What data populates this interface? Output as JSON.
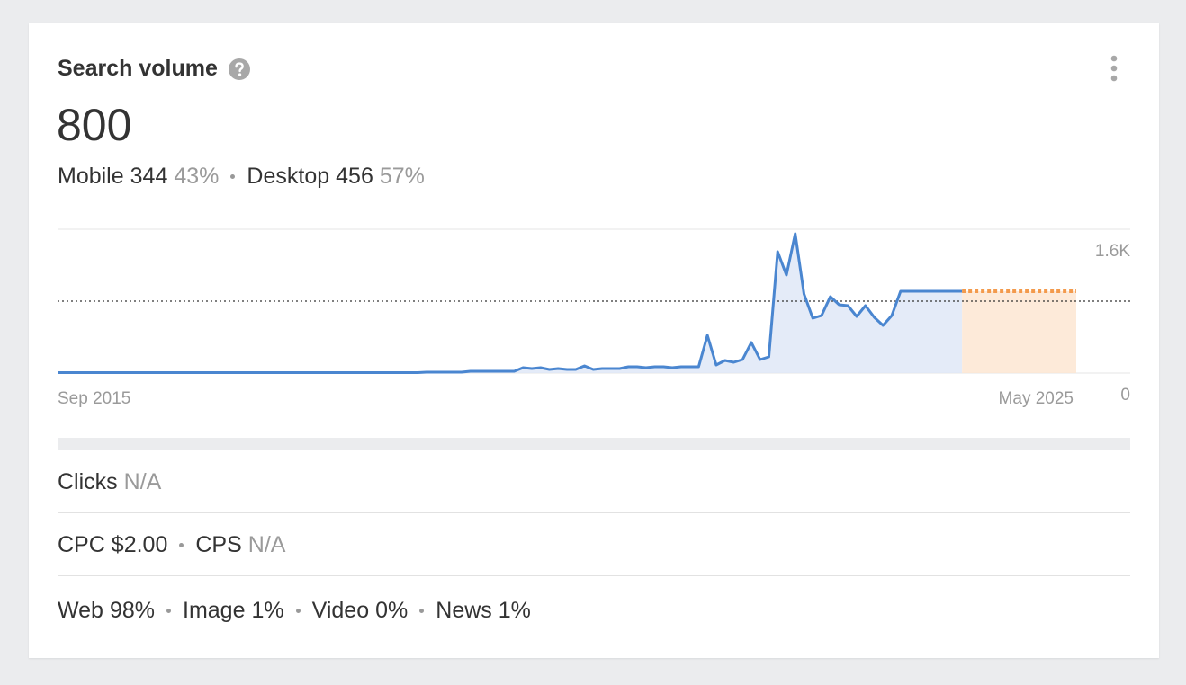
{
  "header": {
    "title": "Search volume",
    "value": 800
  },
  "breakdown": [
    {
      "label": "Mobile",
      "value": 344,
      "share": "43%"
    },
    {
      "label": "Desktop",
      "value": 456,
      "share": "57%"
    }
  ],
  "chart_data": {
    "type": "line",
    "categories": [
      "Sep 2015",
      null,
      null,
      null,
      null,
      null,
      null,
      null,
      null,
      null,
      null,
      null,
      null,
      null,
      null,
      null,
      null,
      null,
      null,
      null,
      null,
      null,
      null,
      null,
      null,
      null,
      null,
      null,
      null,
      null,
      null,
      null,
      null,
      null,
      null,
      null,
      null,
      null,
      null,
      null,
      null,
      null,
      null,
      null,
      null,
      null,
      null,
      null,
      null,
      null,
      null,
      null,
      null,
      null,
      null,
      null,
      null,
      null,
      null,
      null,
      null,
      null,
      null,
      null,
      null,
      null,
      null,
      null,
      null,
      null,
      null,
      null,
      null,
      null,
      null,
      null,
      null,
      null,
      null,
      null,
      null,
      null,
      null,
      null,
      null,
      null,
      null,
      null,
      null,
      null,
      null,
      null,
      null,
      null,
      null,
      null,
      null,
      null,
      null,
      null,
      null,
      null,
      null,
      null,
      null,
      null,
      null,
      null,
      null,
      null,
      null,
      null,
      null,
      null,
      null,
      null,
      "May 2025"
    ],
    "series": [
      {
        "color": "#4a86d0",
        "fill": "#dfe8f7",
        "values": [
          5,
          5,
          5,
          5,
          5,
          5,
          5,
          5,
          5,
          5,
          5,
          5,
          5,
          5,
          5,
          5,
          5,
          5,
          5,
          5,
          5,
          5,
          5,
          5,
          5,
          5,
          5,
          5,
          5,
          5,
          5,
          5,
          5,
          5,
          5,
          5,
          5,
          5,
          5,
          5,
          5,
          5,
          10,
          10,
          10,
          10,
          10,
          20,
          20,
          20,
          20,
          20,
          20,
          60,
          50,
          60,
          40,
          50,
          40,
          40,
          80,
          40,
          50,
          50,
          50,
          70,
          70,
          60,
          70,
          70,
          60,
          70,
          70,
          70,
          420,
          90,
          140,
          120,
          150,
          340,
          150,
          180,
          1350,
          1090,
          1550,
          880,
          610,
          640,
          850,
          760,
          750,
          630,
          750,
          620,
          530,
          640,
          910,
          910,
          910,
          910,
          910,
          910,
          910,
          910,
          null,
          null,
          null,
          null,
          null,
          null,
          null,
          null,
          null,
          null,
          null,
          null,
          null
        ]
      },
      {
        "color": "#f39a4c",
        "fill": "#fde6d2",
        "dashed": true,
        "values": [
          null,
          null,
          null,
          null,
          null,
          null,
          null,
          null,
          null,
          null,
          null,
          null,
          null,
          null,
          null,
          null,
          null,
          null,
          null,
          null,
          null,
          null,
          null,
          null,
          null,
          null,
          null,
          null,
          null,
          null,
          null,
          null,
          null,
          null,
          null,
          null,
          null,
          null,
          null,
          null,
          null,
          null,
          null,
          null,
          null,
          null,
          null,
          null,
          null,
          null,
          null,
          null,
          null,
          null,
          null,
          null,
          null,
          null,
          null,
          null,
          null,
          null,
          null,
          null,
          null,
          null,
          null,
          null,
          null,
          null,
          null,
          null,
          null,
          null,
          null,
          null,
          null,
          null,
          null,
          null,
          null,
          null,
          null,
          null,
          null,
          null,
          null,
          null,
          null,
          null,
          null,
          null,
          null,
          null,
          null,
          null,
          null,
          null,
          null,
          null,
          null,
          null,
          null,
          910,
          910,
          910,
          910,
          910,
          910,
          910,
          910,
          910,
          910,
          910,
          910,
          910,
          910
        ]
      }
    ],
    "reference_line": 800,
    "ylim": [
      0,
      1600
    ],
    "yticks": [
      0,
      {
        "value": 1600,
        "label": "1.6K"
      }
    ],
    "grid": true
  },
  "metrics": {
    "clicks": {
      "label": "Clicks",
      "value": "N/A"
    },
    "cpc": {
      "label": "CPC",
      "value": "$2.00"
    },
    "cps": {
      "label": "CPS",
      "value": "N/A"
    }
  },
  "serp_types": [
    {
      "label": "Web",
      "value": "98%"
    },
    {
      "label": "Image",
      "value": "1%"
    },
    {
      "label": "Video",
      "value": "0%"
    },
    {
      "label": "News",
      "value": "1%"
    }
  ]
}
